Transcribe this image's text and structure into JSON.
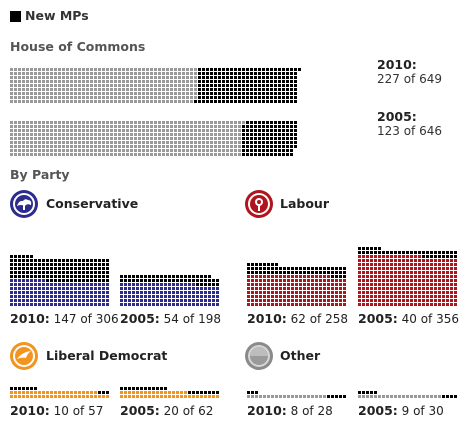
{
  "header": {
    "title": "New MPs"
  },
  "house": {
    "title": "House of Commons",
    "rows": [
      {
        "year": "2010:",
        "count": "227 of 649"
      },
      {
        "year": "2005:",
        "count": "123 of 646"
      }
    ]
  },
  "by_party_title": "By Party",
  "parties": [
    {
      "name": "Conservative",
      "color": "#2d2c8e",
      "icon": "conservative-tree-icon",
      "labels": [
        {
          "year": "2010:",
          "count": "147 of 306"
        },
        {
          "year": "2005:",
          "count": "54 of 198"
        }
      ]
    },
    {
      "name": "Labour",
      "color": "#b0141c",
      "icon": "labour-rose-icon",
      "labels": [
        {
          "year": "2010:",
          "count": "62 of 258"
        },
        {
          "year": "2005:",
          "count": "40 of 356"
        }
      ]
    },
    {
      "name": "Liberal Democrat",
      "color": "#f29420",
      "icon": "libdem-bird-icon",
      "labels": [
        {
          "year": "2010:",
          "count": "10 of 57"
        },
        {
          "year": "2005:",
          "count": "20 of 62"
        }
      ]
    },
    {
      "name": "Other",
      "color": "#999999",
      "icon": "other-grey-icon",
      "labels": [
        {
          "year": "2010:",
          "count": "8 of 28"
        },
        {
          "year": "2005:",
          "count": "9 of 30"
        }
      ]
    }
  ],
  "chart_data": {
    "type": "waffle",
    "new_mp_color": "#000000",
    "groups": [
      {
        "group": "House of Commons",
        "series": [
          {
            "year": 2010,
            "new": 227,
            "total": 649,
            "color": "#999999"
          },
          {
            "year": 2005,
            "new": 123,
            "total": 646,
            "color": "#999999"
          }
        ]
      },
      {
        "group": "Conservative",
        "series": [
          {
            "year": 2010,
            "new": 147,
            "total": 306,
            "color": "#2d2c8e"
          },
          {
            "year": 2005,
            "new": 54,
            "total": 198,
            "color": "#2d2c8e"
          }
        ]
      },
      {
        "group": "Labour",
        "series": [
          {
            "year": 2010,
            "new": 62,
            "total": 258,
            "color": "#b0141c"
          },
          {
            "year": 2005,
            "new": 40,
            "total": 356,
            "color": "#b0141c"
          }
        ]
      },
      {
        "group": "Liberal Democrat",
        "series": [
          {
            "year": 2010,
            "new": 10,
            "total": 57,
            "color": "#f29420"
          },
          {
            "year": 2005,
            "new": 20,
            "total": 62,
            "color": "#f29420"
          }
        ]
      },
      {
        "group": "Other",
        "series": [
          {
            "year": 2010,
            "new": 8,
            "total": 28,
            "color": "#999999"
          },
          {
            "year": 2005,
            "new": 9,
            "total": 30,
            "color": "#999999"
          }
        ]
      }
    ]
  }
}
